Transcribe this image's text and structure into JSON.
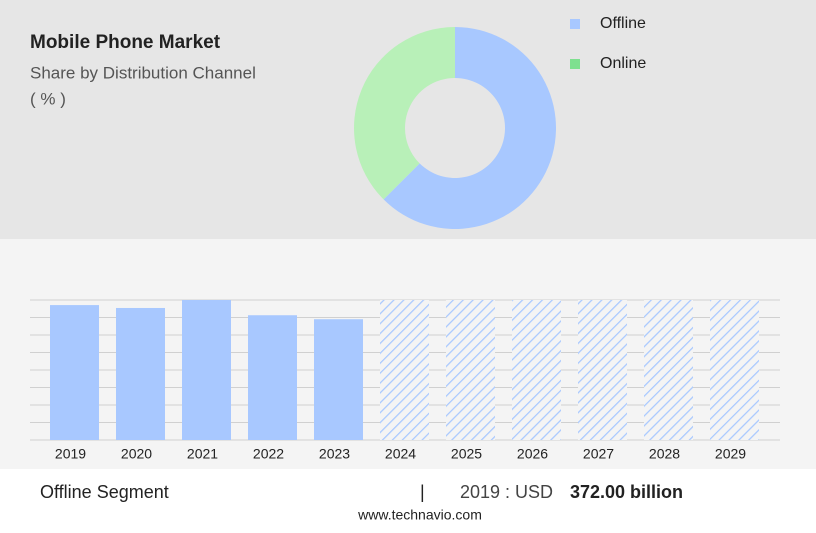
{
  "chart_data": [
    {
      "type": "pie",
      "title": "Mobile Phone Market",
      "subtitle": "Share by Distribution Channel",
      "unit_label": "( % )",
      "categories": [
        "Offline",
        "Online"
      ],
      "values": [
        62.5,
        37.5
      ],
      "colors": [
        "#a8c8ff",
        "#b8f0b8"
      ],
      "legend_colors": [
        "#a8c8ff",
        "#7ee08f"
      ],
      "donut": true
    },
    {
      "type": "bar",
      "categories": [
        "2019",
        "2020",
        "2021",
        "2022",
        "2023",
        "2024",
        "2025",
        "2026",
        "2027",
        "2028",
        "2029"
      ],
      "values": [
        372,
        364,
        386,
        344,
        333,
        null,
        null,
        null,
        null,
        null,
        null
      ],
      "color": "#a8c8ff",
      "ylim": [
        0,
        386
      ]
    }
  ],
  "footer": {
    "segment": "Offline Segment",
    "separator": "|",
    "year_label": "2019 : USD",
    "value": "372.00 billion",
    "source": "www.technavio.com"
  }
}
